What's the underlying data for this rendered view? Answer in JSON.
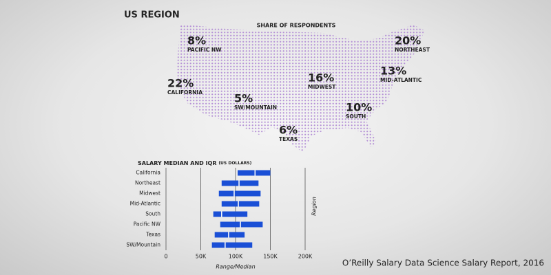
{
  "chart_data": [
    {
      "type": "map",
      "title": "US REGION",
      "subtitle": "SHARE OF RESPONDENTS",
      "categories": [
        "PACIFIC NW",
        "NORTHEAST",
        "CALIFORNIA",
        "MIDWEST",
        "MID-ATLANTIC",
        "SW/MOUNTAIN",
        "SOUTH",
        "TEXAS"
      ],
      "values": [
        8,
        20,
        22,
        16,
        13,
        5,
        10,
        6
      ],
      "value_labels": [
        "8%",
        "20%",
        "22%",
        "16%",
        "13%",
        "5%",
        "10%",
        "6%"
      ],
      "color": "#b48fd6"
    },
    {
      "type": "range-bar",
      "title": "SALARY MEDIAN AND IQR",
      "subtitle": "(US DOLLARS)",
      "categories": [
        "California",
        "Northeast",
        "Midwest",
        "Mid-Atlantic",
        "South",
        "Pacific NW",
        "Texas",
        "SW/Mountain"
      ],
      "boxes": [
        {
          "q1": 103000,
          "median": 128000,
          "q3": 150000
        },
        {
          "q1": 80000,
          "median": 105000,
          "q3": 133000
        },
        {
          "q1": 76000,
          "median": 98000,
          "q3": 136000
        },
        {
          "q1": 80000,
          "median": 104000,
          "q3": 134000
        },
        {
          "q1": 68000,
          "median": 80000,
          "q3": 117000
        },
        {
          "q1": 78000,
          "median": 107000,
          "q3": 139000
        },
        {
          "q1": 70000,
          "median": 90000,
          "q3": 113000
        },
        {
          "q1": 66000,
          "median": 85000,
          "q3": 124000
        }
      ],
      "color": "#1a4fd6",
      "xlabel": "Range/Median",
      "ylabel": "Region",
      "xlim": [
        0,
        200000
      ],
      "xticks": [
        0,
        {
          "value": 50000,
          "label": "50K"
        },
        {
          "value": 100000,
          "label": "100K"
        },
        {
          "value": 150000,
          "label": "150K"
        },
        {
          "value": 200000,
          "label": "200K"
        }
      ],
      "grid": true
    }
  ],
  "caption": "O’Reilly Salary Data Science Salary Report, 2016"
}
